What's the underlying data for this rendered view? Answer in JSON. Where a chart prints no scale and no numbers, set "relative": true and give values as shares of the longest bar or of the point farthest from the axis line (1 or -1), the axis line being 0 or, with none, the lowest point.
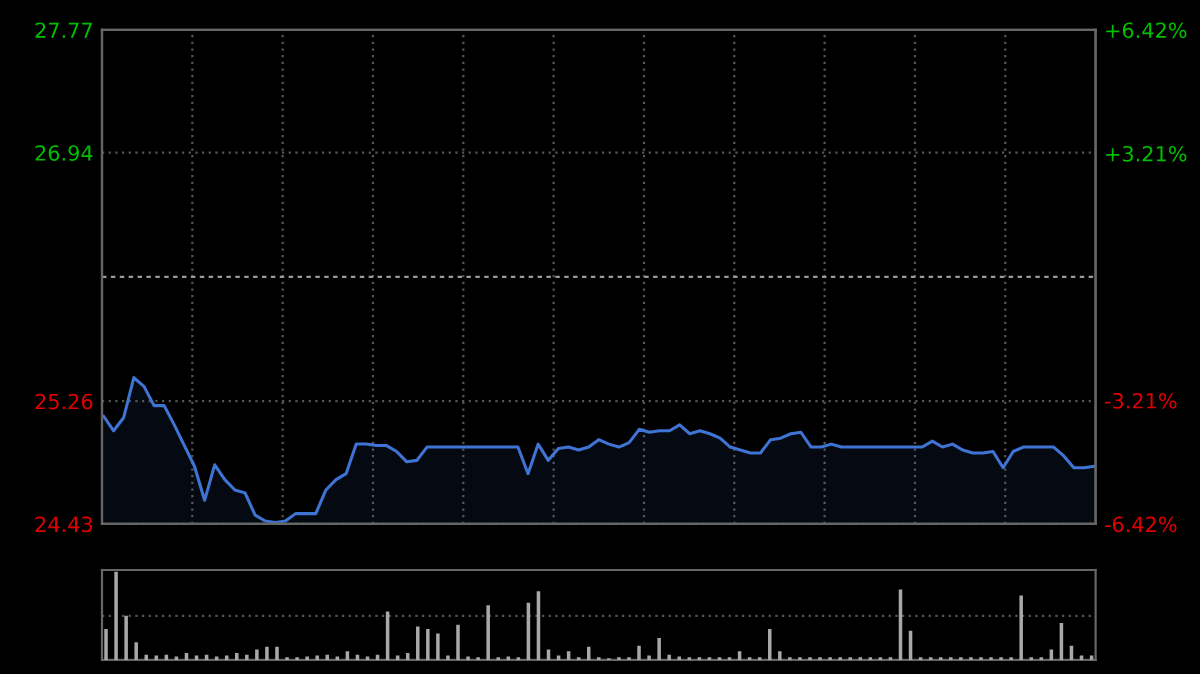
{
  "chart_data": [
    {
      "type": "area",
      "categories": [
        null,
        null,
        null,
        null,
        null,
        null,
        null,
        null,
        null,
        null,
        null,
        null,
        null,
        null,
        null,
        null,
        null,
        null,
        null,
        null,
        null,
        null,
        null,
        null,
        null,
        null,
        null,
        null,
        null,
        null,
        null,
        null,
        null,
        null,
        null,
        null,
        null,
        null,
        null,
        null,
        null,
        null,
        null,
        null,
        null,
        null,
        null,
        null,
        null,
        null,
        null,
        null,
        null,
        null,
        null,
        null,
        null,
        null,
        null,
        null,
        null,
        null,
        null,
        null,
        null,
        null,
        null,
        null,
        null,
        null,
        null,
        null,
        null,
        null,
        null,
        null,
        null,
        null,
        null,
        null,
        null,
        null,
        null,
        null,
        null,
        null,
        null,
        null,
        null,
        null,
        null,
        null,
        null,
        null,
        null,
        null,
        null,
        null,
        null
      ],
      "series": [
        {
          "color": "#3f74d4",
          "values": [
            25.16,
            25.06,
            25.15,
            25.42,
            25.36,
            25.23,
            25.23,
            25.1,
            24.96,
            24.82,
            24.59,
            24.83,
            24.73,
            24.66,
            24.64,
            24.49,
            24.45,
            24.44,
            24.45,
            24.5,
            24.5,
            24.5,
            24.66,
            24.73,
            24.77,
            24.97,
            24.97,
            24.96,
            24.96,
            24.92,
            24.85,
            24.86,
            24.95,
            24.95,
            24.95,
            24.95,
            24.95,
            24.95,
            24.95,
            24.95,
            24.95,
            24.95,
            24.77,
            24.97,
            24.86,
            24.94,
            24.95,
            24.93,
            24.95,
            25.0,
            24.97,
            24.95,
            24.98,
            25.07,
            25.05,
            25.06,
            25.06,
            25.1,
            25.04,
            25.06,
            25.04,
            25.01,
            24.95,
            24.93,
            24.91,
            24.91,
            25.0,
            25.01,
            25.04,
            25.05,
            24.95,
            24.95,
            24.97,
            24.95,
            24.95,
            24.95,
            24.95,
            24.95,
            24.95,
            24.95,
            24.95,
            24.95,
            24.99,
            24.95,
            24.97,
            24.93,
            24.91,
            24.91,
            24.92,
            24.81,
            24.92,
            24.95,
            24.95,
            24.95,
            24.95,
            24.89,
            24.81,
            24.81,
            24.82
          ]
        }
      ],
      "ylim": [
        24.43,
        27.77
      ],
      "yticks": [
        24.43,
        25.26,
        26.94,
        27.77
      ],
      "ref_lines": [
        {
          "axis": "y",
          "value": 26.1,
          "color": "#9a9a9a",
          "line_style": "dashed"
        }
      ],
      "y2lim": [
        -6.42,
        6.42
      ],
      "y2ticks": [
        {
          "value": -6.42,
          "label": "-6.42%"
        },
        {
          "value": -3.21,
          "label": "-3.21%"
        },
        {
          "value": 3.21,
          "label": "+3.21%"
        },
        {
          "value": 6.42,
          "label": "+6.42%"
        }
      ],
      "tick_labels": "y",
      "grid": true
    },
    {
      "type": "bar",
      "relative": true,
      "color": "#a8a8a8",
      "tick_labels": false,
      "ref_lines": [
        {
          "axis": "y",
          "value": 0.5,
          "color": "#555555",
          "line_style": "dotted"
        }
      ],
      "categories": [
        null,
        null,
        null,
        null,
        null,
        null,
        null,
        null,
        null,
        null,
        null,
        null,
        null,
        null,
        null,
        null,
        null,
        null,
        null,
        null,
        null,
        null,
        null,
        null,
        null,
        null,
        null,
        null,
        null,
        null,
        null,
        null,
        null,
        null,
        null,
        null,
        null,
        null,
        null,
        null,
        null,
        null,
        null,
        null,
        null,
        null,
        null,
        null,
        null,
        null,
        null,
        null,
        null,
        null,
        null,
        null,
        null,
        null,
        null,
        null,
        null,
        null,
        null,
        null,
        null,
        null,
        null,
        null,
        null,
        null,
        null,
        null,
        null,
        null,
        null,
        null,
        null,
        null,
        null,
        null,
        null,
        null,
        null,
        null,
        null,
        null,
        null,
        null,
        null,
        null,
        null,
        null,
        null,
        null,
        null,
        null,
        null,
        null,
        null
      ],
      "values": [
        0.35,
        1.0,
        0.5,
        0.2,
        0.06,
        0.05,
        0.06,
        0.04,
        0.08,
        0.05,
        0.06,
        0.04,
        0.05,
        0.08,
        0.06,
        0.12,
        0.15,
        0.15,
        0.03,
        0.03,
        0.04,
        0.05,
        0.06,
        0.04,
        0.1,
        0.06,
        0.04,
        0.06,
        0.55,
        0.05,
        0.08,
        0.38,
        0.35,
        0.3,
        0.05,
        0.4,
        0.04,
        0.03,
        0.62,
        0.03,
        0.04,
        0.03,
        0.65,
        0.78,
        0.12,
        0.05,
        0.1,
        0.03,
        0.15,
        0.03,
        0.02,
        0.03,
        0.03,
        0.16,
        0.05,
        0.25,
        0.06,
        0.04,
        0.03,
        0.03,
        0.03,
        0.03,
        0.03,
        0.1,
        0.03,
        0.03,
        0.35,
        0.1,
        0.03,
        0.03,
        0.03,
        0.03,
        0.03,
        0.03,
        0.03,
        0.03,
        0.03,
        0.03,
        0.03,
        0.8,
        0.33,
        0.03,
        0.03,
        0.03,
        0.03,
        0.03,
        0.03,
        0.03,
        0.03,
        0.03,
        0.03,
        0.73,
        0.03,
        0.03,
        0.12,
        0.42,
        0.16,
        0.05,
        0.05
      ]
    }
  ]
}
